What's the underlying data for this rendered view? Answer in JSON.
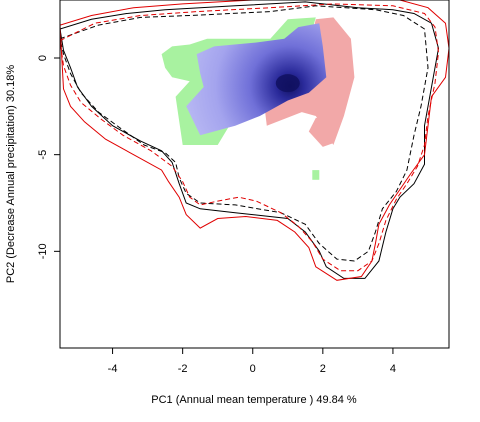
{
  "chart_data": {
    "type": "contour-raster",
    "xlabel": "PC1 (Annual mean temperature ) 49.84 %",
    "ylabel": "PC2 (Decrease Annual precipitation) 30.18%",
    "xlim": [
      -5.5,
      5.6
    ],
    "ylim": [
      -15,
      3
    ],
    "xticks": [
      -4,
      -2,
      0,
      2,
      4
    ],
    "yticks": [
      0,
      -5,
      -10
    ],
    "xtick_labels": [
      "-4",
      "-2",
      "0",
      "2",
      "4"
    ],
    "ytick_labels": [
      "0",
      "-5",
      "-10"
    ],
    "grid": false,
    "legend": "none",
    "colors": {
      "green": "#a8f2a0",
      "pink": "#f2a8a8",
      "blue_light": "#b4b4f0",
      "blue_dark": "#101060",
      "contour_black": "#000000",
      "contour_red": "#e00000"
    },
    "regions": {
      "green_region": [
        [
          -2.5,
          -0.5
        ],
        [
          -2.6,
          0.2
        ],
        [
          -2.3,
          0.6
        ],
        [
          -1.8,
          0.7
        ],
        [
          -1.3,
          1.0
        ],
        [
          0.5,
          1.0
        ],
        [
          1.0,
          2.0
        ],
        [
          1.8,
          2.1
        ],
        [
          1.6,
          0.8
        ],
        [
          1.5,
          -0.8
        ],
        [
          1.0,
          -2.0
        ],
        [
          -0.5,
          -3.0
        ],
        [
          -1.0,
          -4.5
        ],
        [
          -2.0,
          -4.5
        ],
        [
          -2.2,
          -2.0
        ],
        [
          -1.8,
          -1.2
        ],
        [
          -2.3,
          -1.0
        ]
      ],
      "pink_region": [
        [
          1.8,
          2.0
        ],
        [
          2.3,
          2.1
        ],
        [
          2.8,
          1.0
        ],
        [
          2.9,
          -1.0
        ],
        [
          2.6,
          -3.0
        ],
        [
          2.3,
          -4.5
        ],
        [
          1.8,
          -3.0
        ],
        [
          1.4,
          -2.8
        ],
        [
          0.4,
          -3.5
        ],
        [
          0.3,
          -2.0
        ],
        [
          0.8,
          -1.8
        ],
        [
          1.4,
          -1.0
        ],
        [
          1.6,
          0.5
        ]
      ],
      "blue_region": [
        [
          -1.5,
          -0.8
        ],
        [
          -1.6,
          0.2
        ],
        [
          -1.1,
          0.6
        ],
        [
          0.1,
          0.8
        ],
        [
          0.9,
          1.0
        ],
        [
          1.3,
          1.6
        ],
        [
          1.9,
          1.8
        ],
        [
          2.0,
          0.6
        ],
        [
          2.1,
          -1.0
        ],
        [
          1.6,
          -1.8
        ],
        [
          1.0,
          -2.2
        ],
        [
          0.2,
          -3.0
        ],
        [
          -0.5,
          -3.5
        ],
        [
          -1.5,
          -4.0
        ],
        [
          -1.9,
          -2.5
        ],
        [
          -1.4,
          -1.5
        ]
      ],
      "pink_blob": [
        [
          1.8,
          -3.1
        ],
        [
          2.2,
          -3.2
        ],
        [
          2.3,
          -4.4
        ],
        [
          2.0,
          -4.6
        ],
        [
          1.6,
          -3.8
        ]
      ],
      "green_blob": [
        [
          1.7,
          -5.8
        ],
        [
          1.9,
          -5.8
        ],
        [
          1.9,
          -6.3
        ],
        [
          1.7,
          -6.3
        ]
      ],
      "density_peak": [
        1.0,
        -1.3
      ]
    },
    "contours": [
      {
        "color": "black",
        "style": "solid",
        "points": [
          [
            -5.5,
            1.5
          ],
          [
            -4.6,
            2.0
          ],
          [
            -3.6,
            2.3
          ],
          [
            -2.5,
            2.5
          ],
          [
            -0.5,
            2.7
          ],
          [
            1.5,
            2.9
          ],
          [
            3.0,
            2.6
          ],
          [
            4.0,
            2.5
          ],
          [
            4.6,
            2.3
          ],
          [
            5.1,
            1.8
          ],
          [
            5.3,
            0.5
          ],
          [
            5.1,
            -1.5
          ],
          [
            4.9,
            -3.5
          ],
          [
            4.9,
            -5.5
          ],
          [
            4.6,
            -6.5
          ],
          [
            4.2,
            -7.2
          ],
          [
            4.0,
            -7.8
          ],
          [
            3.8,
            -9.0
          ],
          [
            3.6,
            -10.5
          ],
          [
            3.2,
            -11.4
          ],
          [
            2.6,
            -11.4
          ],
          [
            2.1,
            -10.8
          ],
          [
            1.9,
            -10.0
          ],
          [
            1.5,
            -9.0
          ],
          [
            1.0,
            -8.3
          ],
          [
            -0.5,
            -8.0
          ],
          [
            -1.5,
            -7.8
          ],
          [
            -1.9,
            -7.5
          ],
          [
            -2.1,
            -6.5
          ],
          [
            -2.3,
            -5.4
          ],
          [
            -2.6,
            -4.8
          ],
          [
            -3.2,
            -4.3
          ],
          [
            -4.0,
            -3.5
          ],
          [
            -4.6,
            -2.5
          ],
          [
            -5.0,
            -1.5
          ],
          [
            -5.2,
            -0.5
          ],
          [
            -5.4,
            0.4
          ]
        ]
      },
      {
        "color": "black",
        "style": "dashed",
        "points": [
          [
            -5.5,
            1.0
          ],
          [
            -4.4,
            1.7
          ],
          [
            -3.2,
            2.1
          ],
          [
            -1.8,
            2.2
          ],
          [
            0.5,
            2.4
          ],
          [
            1.8,
            2.7
          ],
          [
            3.5,
            2.5
          ],
          [
            4.3,
            2.2
          ],
          [
            4.9,
            1.5
          ],
          [
            5.0,
            -0.5
          ],
          [
            4.8,
            -2.5
          ],
          [
            4.6,
            -4.0
          ],
          [
            4.4,
            -5.8
          ],
          [
            4.1,
            -6.9
          ],
          [
            3.7,
            -7.8
          ],
          [
            3.5,
            -9.0
          ],
          [
            3.3,
            -10.0
          ],
          [
            2.9,
            -10.5
          ],
          [
            2.4,
            -10.4
          ],
          [
            1.9,
            -9.6
          ],
          [
            1.5,
            -8.6
          ],
          [
            0.8,
            -8.0
          ],
          [
            -0.5,
            -7.6
          ],
          [
            -1.5,
            -7.5
          ],
          [
            -1.9,
            -7.0
          ],
          [
            -2.1,
            -6.2
          ],
          [
            -2.2,
            -5.4
          ],
          [
            -2.5,
            -4.9
          ],
          [
            -3.1,
            -4.5
          ],
          [
            -3.8,
            -3.6
          ],
          [
            -4.4,
            -2.8
          ],
          [
            -4.9,
            -1.8
          ],
          [
            -5.2,
            -0.8
          ],
          [
            -5.4,
            0.2
          ]
        ]
      },
      {
        "color": "red",
        "style": "solid",
        "points": [
          [
            -5.5,
            1.7
          ],
          [
            -4.6,
            2.2
          ],
          [
            -3.4,
            2.6
          ],
          [
            -2.0,
            2.8
          ],
          [
            0.0,
            3.0
          ],
          [
            2.5,
            3.1
          ],
          [
            4.2,
            3.0
          ],
          [
            5.0,
            2.6
          ],
          [
            5.5,
            1.8
          ],
          [
            5.6,
            0.5
          ],
          [
            5.5,
            -1.0
          ],
          [
            5.1,
            -2.0
          ],
          [
            5.0,
            -3.5
          ],
          [
            4.9,
            -5.0
          ],
          [
            4.5,
            -6.0
          ],
          [
            4.2,
            -6.8
          ],
          [
            3.9,
            -7.6
          ],
          [
            3.6,
            -8.6
          ],
          [
            3.5,
            -9.6
          ],
          [
            3.4,
            -10.5
          ],
          [
            3.1,
            -11.3
          ],
          [
            2.4,
            -11.5
          ],
          [
            1.8,
            -10.8
          ],
          [
            1.6,
            -9.8
          ],
          [
            1.2,
            -9.0
          ],
          [
            0.7,
            -8.4
          ],
          [
            -0.2,
            -8.2
          ],
          [
            -1.0,
            -8.3
          ],
          [
            -1.5,
            -8.8
          ],
          [
            -1.9,
            -8.1
          ],
          [
            -2.1,
            -7.2
          ],
          [
            -2.4,
            -6.4
          ],
          [
            -2.6,
            -5.8
          ],
          [
            -3.4,
            -5.0
          ],
          [
            -4.2,
            -4.2
          ],
          [
            -4.8,
            -3.3
          ],
          [
            -5.2,
            -2.5
          ],
          [
            -5.4,
            -1.6
          ]
        ]
      },
      {
        "color": "red",
        "style": "dashed",
        "points": [
          [
            -5.5,
            0.9
          ],
          [
            -4.5,
            1.8
          ],
          [
            -3.2,
            2.2
          ],
          [
            -1.6,
            2.4
          ],
          [
            0.5,
            2.6
          ],
          [
            2.3,
            2.8
          ],
          [
            4.0,
            2.7
          ],
          [
            4.9,
            2.3
          ],
          [
            5.2,
            1.6
          ],
          [
            5.3,
            0.3
          ],
          [
            5.2,
            -1.3
          ],
          [
            5.0,
            -3.0
          ],
          [
            4.9,
            -4.5
          ],
          [
            4.7,
            -5.6
          ],
          [
            4.4,
            -6.5
          ],
          [
            4.1,
            -7.3
          ],
          [
            3.8,
            -8.4
          ],
          [
            3.6,
            -9.6
          ],
          [
            3.4,
            -10.5
          ],
          [
            3.0,
            -11.0
          ],
          [
            2.5,
            -11.0
          ],
          [
            2.0,
            -10.4
          ],
          [
            1.7,
            -9.5
          ],
          [
            1.3,
            -8.7
          ],
          [
            0.8,
            -8.0
          ],
          [
            0.1,
            -7.4
          ],
          [
            -0.4,
            -7.2
          ],
          [
            -1.0,
            -7.4
          ],
          [
            -1.5,
            -7.6
          ],
          [
            -1.8,
            -7.2
          ],
          [
            -2.0,
            -6.4
          ],
          [
            -2.3,
            -5.6
          ],
          [
            -2.9,
            -4.8
          ],
          [
            -3.7,
            -4.0
          ],
          [
            -4.3,
            -3.2
          ],
          [
            -4.9,
            -2.3
          ],
          [
            -5.2,
            -1.4
          ],
          [
            -5.4,
            -0.4
          ]
        ]
      }
    ]
  },
  "plot": {
    "xlabel": "PC1 (Annual mean temperature ) 49.84 %",
    "ylabel": "PC2 (Decrease Annual precipitation) 30.18%"
  }
}
